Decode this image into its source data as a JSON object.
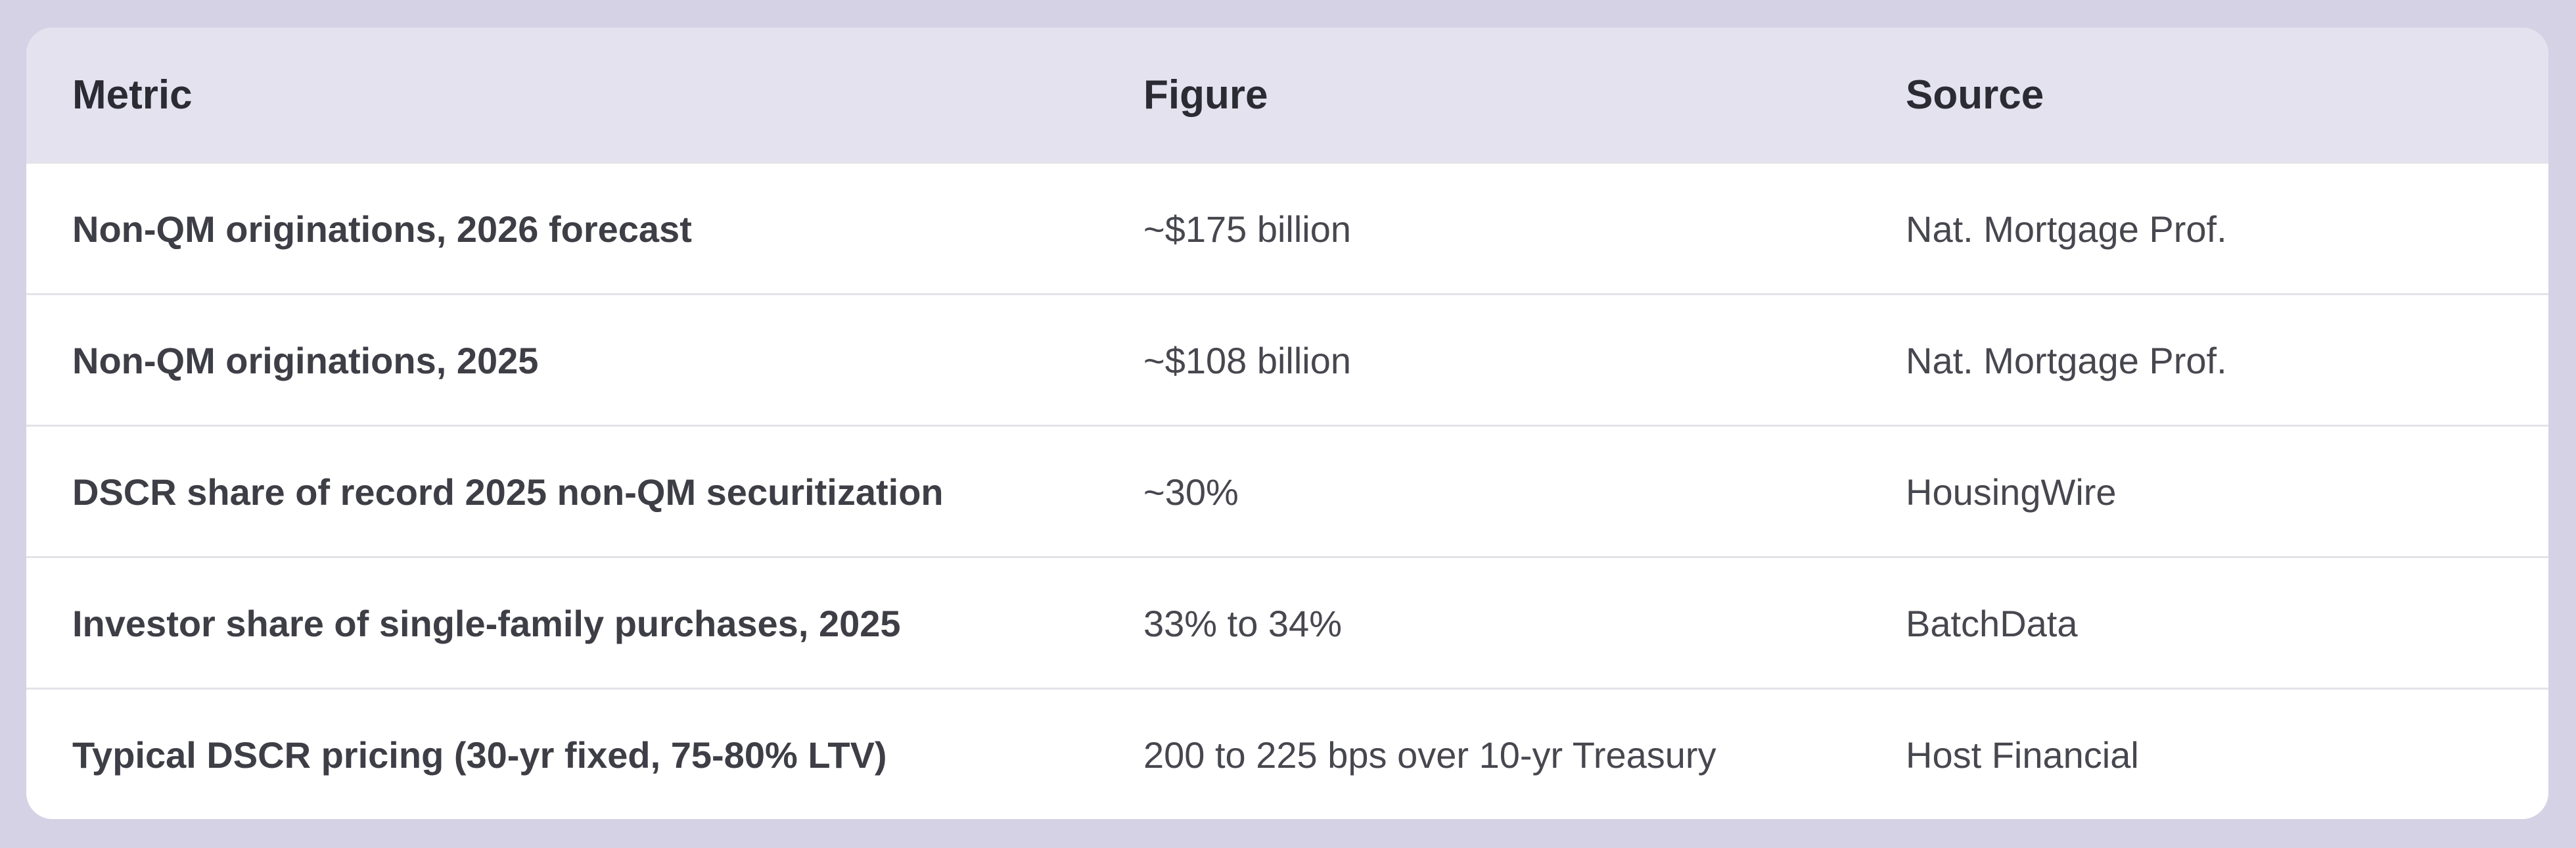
{
  "table": {
    "headers": {
      "metric": "Metric",
      "figure": "Figure",
      "source": "Source"
    },
    "rows": [
      {
        "metric": "Non-QM originations, 2026 forecast",
        "figure": "~$175 billion",
        "source": "Nat. Mortgage Prof."
      },
      {
        "metric": "Non-QM originations, 2025",
        "figure": "~$108 billion",
        "source": "Nat. Mortgage Prof."
      },
      {
        "metric": "DSCR share of record 2025 non-QM securitization",
        "figure": "~30%",
        "source": "HousingWire"
      },
      {
        "metric": "Investor share of single-family purchases, 2025",
        "figure": "33% to 34%",
        "source": "BatchData"
      },
      {
        "metric": "Typical DSCR pricing (30-yr fixed, 75-80% LTV)",
        "figure": "200 to 225 bps over 10-yr Treasury",
        "source": "Host Financial"
      }
    ]
  },
  "colors": {
    "page_background": "#d6d2e5",
    "header_background": "#e4e2ef",
    "card_background": "#ffffff",
    "row_divider": "#e3e3e8"
  }
}
